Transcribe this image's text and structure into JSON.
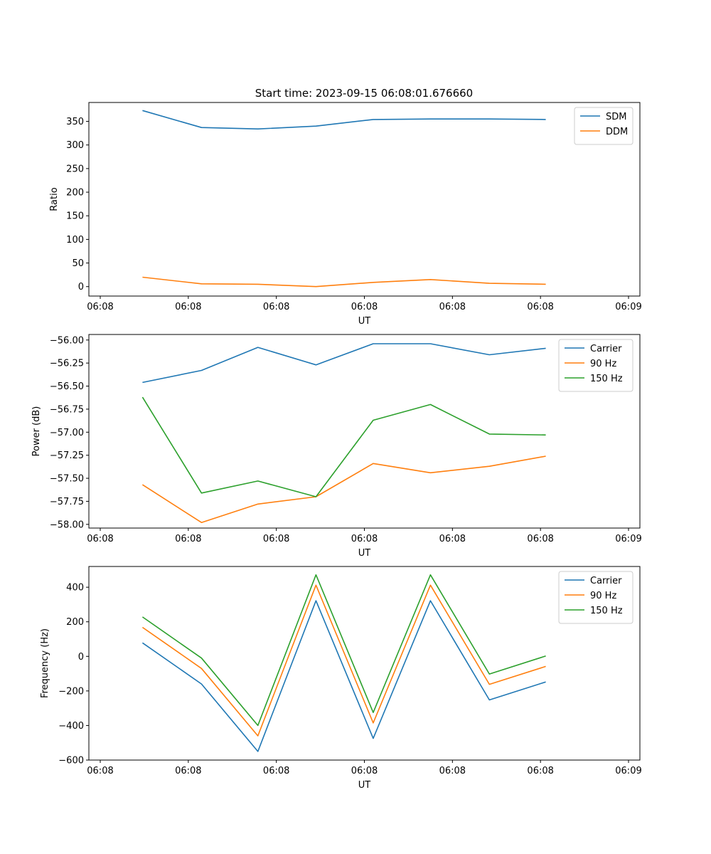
{
  "figure_title": "Start time: 2023-09-15 06:08:01.676660",
  "colors": {
    "blue": "#1f77b4",
    "orange": "#ff7f0e",
    "green": "#2ca02c"
  },
  "chart_data": [
    {
      "type": "line",
      "title": "Start time: 2023-09-15 06:08:01.676660",
      "xlabel": "UT",
      "ylabel": "Ratio",
      "xlim": [
        0,
        6
      ],
      "ylim": [
        -20,
        390
      ],
      "xticks": [
        0,
        1,
        2,
        3,
        4,
        5,
        6
      ],
      "xtick_labels": [
        "06:08",
        "06:08",
        "06:08",
        "06:08",
        "06:08",
        "06:08",
        "06:09"
      ],
      "yticks": [
        0,
        50,
        100,
        150,
        200,
        250,
        300,
        350
      ],
      "ytick_labels": [
        "0",
        "50",
        "100",
        "150",
        "200",
        "250",
        "300",
        "350"
      ],
      "x": [
        0.48,
        1.15,
        1.79,
        2.45,
        3.1,
        3.75,
        4.42,
        5.06
      ],
      "series": [
        {
          "name": "SDM",
          "color": "#1f77b4",
          "values": [
            373,
            337,
            334,
            340,
            354,
            355,
            355,
            354
          ]
        },
        {
          "name": "DDM",
          "color": "#ff7f0e",
          "values": [
            20,
            6,
            5,
            0,
            9,
            15,
            7,
            5
          ]
        }
      ],
      "legend": "upper right"
    },
    {
      "type": "line",
      "title": "",
      "xlabel": "UT",
      "ylabel": "Power (dB)",
      "xlim": [
        0,
        6
      ],
      "ylim": [
        -58.04,
        -55.94
      ],
      "xticks": [
        0,
        1,
        2,
        3,
        4,
        5,
        6
      ],
      "xtick_labels": [
        "06:08",
        "06:08",
        "06:08",
        "06:08",
        "06:08",
        "06:08",
        "06:09"
      ],
      "yticks": [
        -58.0,
        -57.75,
        -57.5,
        -57.25,
        -57.0,
        -56.75,
        -56.5,
        -56.25,
        -56.0
      ],
      "ytick_labels": [
        "−58.00",
        "−57.75",
        "−57.50",
        "−57.25",
        "−57.00",
        "−56.75",
        "−56.50",
        "−56.25",
        "−56.00"
      ],
      "x": [
        0.48,
        1.15,
        1.79,
        2.45,
        3.1,
        3.75,
        4.42,
        5.06
      ],
      "series": [
        {
          "name": "Carrier",
          "color": "#1f77b4",
          "values": [
            -56.46,
            -56.33,
            -56.08,
            -56.27,
            -56.04,
            -56.04,
            -56.16,
            -56.09
          ]
        },
        {
          "name": "90 Hz",
          "color": "#ff7f0e",
          "values": [
            -57.57,
            -57.98,
            -57.78,
            -57.7,
            -57.34,
            -57.44,
            -57.37,
            -57.26
          ]
        },
        {
          "name": "150 Hz",
          "color": "#2ca02c",
          "values": [
            -56.62,
            -57.66,
            -57.53,
            -57.7,
            -56.87,
            -56.7,
            -57.02,
            -57.03
          ]
        }
      ],
      "legend": "upper right"
    },
    {
      "type": "line",
      "title": "",
      "xlabel": "UT",
      "ylabel": "Frequency (Hz)",
      "xlim": [
        0,
        6
      ],
      "ylim": [
        -600,
        520
      ],
      "xticks": [
        0,
        1,
        2,
        3,
        4,
        5,
        6
      ],
      "xtick_labels": [
        "06:08",
        "06:08",
        "06:08",
        "06:08",
        "06:08",
        "06:08",
        "06:09"
      ],
      "yticks": [
        -600,
        -400,
        -200,
        0,
        200,
        400
      ],
      "ytick_labels": [
        "−600",
        "−400",
        "−200",
        "0",
        "200",
        "400"
      ],
      "x": [
        0.48,
        1.15,
        1.79,
        2.45,
        3.1,
        3.75,
        4.42,
        5.06
      ],
      "series": [
        {
          "name": "Carrier",
          "color": "#1f77b4",
          "values": [
            78,
            -160,
            -550,
            322,
            -475,
            322,
            -252,
            -148
          ]
        },
        {
          "name": "90 Hz",
          "color": "#ff7f0e",
          "values": [
            168,
            -70,
            -460,
            412,
            -385,
            412,
            -162,
            -58
          ]
        },
        {
          "name": "150 Hz",
          "color": "#2ca02c",
          "values": [
            228,
            -10,
            -400,
            472,
            -325,
            472,
            -102,
            2
          ]
        }
      ],
      "legend": "upper right"
    }
  ]
}
